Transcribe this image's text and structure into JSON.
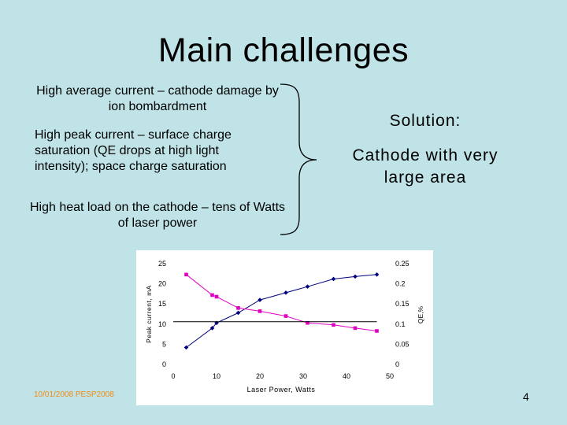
{
  "slide": {
    "title": "Main challenges",
    "bullets": [
      "High average current – cathode damage by ion bombardment",
      "High peak current – surface charge saturation (QE drops at high light intensity); space charge saturation",
      "High heat load on the cathode – tens of Watts of laser power"
    ],
    "solution_label": "Solution:",
    "solution_text": "Cathode with very large area",
    "footer_date": "10/01/2008  PESP2008",
    "page_number": "4"
  },
  "chart_data": {
    "type": "line",
    "xlabel": "Laser Power, Watts",
    "ylabel": "Peak current, mA",
    "y2label": "QE,%",
    "xlim": [
      0,
      50
    ],
    "ylim": [
      0,
      25
    ],
    "y2lim": [
      0,
      0.25
    ],
    "xticks": [
      "0",
      "10",
      "20",
      "30",
      "40",
      "50"
    ],
    "yticks": [
      "0",
      "5",
      "10",
      "15",
      "20",
      "25"
    ],
    "y2ticks": [
      "0",
      "0.05",
      "0.1",
      "0.15",
      "0.2",
      "0.25"
    ],
    "grid": false,
    "series": [
      {
        "axis": "left",
        "color": "#000080",
        "marker": "diamond",
        "x": [
          3,
          9,
          10,
          15,
          20,
          26,
          31,
          37,
          42,
          47
        ],
        "y": [
          4.2,
          9,
          10.3,
          12.8,
          16,
          17.8,
          19.3,
          21.2,
          21.8,
          22.3
        ]
      },
      {
        "axis": "right",
        "color": "#e000c0",
        "marker": "square",
        "x": [
          3,
          9,
          10,
          15,
          20,
          26,
          31,
          37,
          42,
          47
        ],
        "y": [
          0.223,
          0.172,
          0.168,
          0.14,
          0.132,
          0.12,
          0.103,
          0.098,
          0.09,
          0.083
        ]
      },
      {
        "axis": "left",
        "color": "#000000",
        "marker": "none",
        "x": [
          0,
          47
        ],
        "y": [
          10.6,
          10.6
        ]
      }
    ]
  }
}
